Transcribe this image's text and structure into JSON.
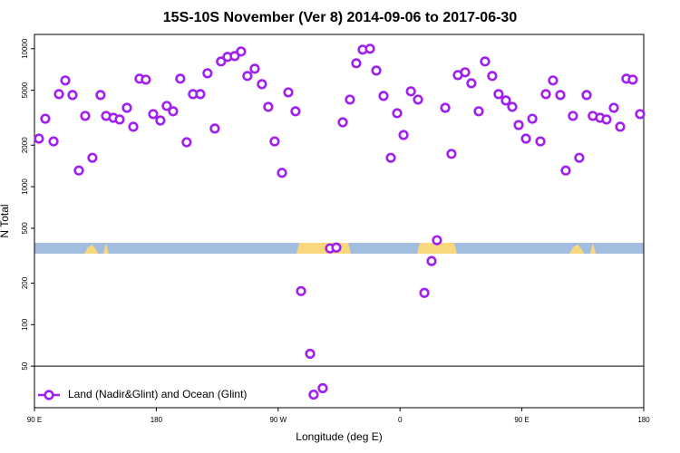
{
  "chart_data": {
    "type": "scatter",
    "title": "15S-10S November (Ver 8)   2014-09-06 to 2017-06-30",
    "x_label": "Longitude (deg E)",
    "y_label": "N Total",
    "log_y": true,
    "xlim": [
      90,
      540
    ],
    "xticks": [
      {
        "value": 90,
        "label": "90 E"
      },
      180,
      {
        "value": 270,
        "label": "90 W"
      },
      {
        "value": 360,
        "label": "0"
      },
      {
        "value": 450,
        "label": "90 E"
      },
      180
    ],
    "ylim": [
      25,
      12700
    ],
    "yticks": [
      50,
      100,
      200,
      500,
      1000,
      2000,
      5000,
      10000
    ],
    "legend": "lower left",
    "series": [
      {
        "name": "Land (Nadir&Glint) and Ocean (Glint)",
        "color": "#a020f0",
        "x": [
          93.3,
          98.0,
          104.1,
          108.1,
          112.8,
          118.1,
          122.8,
          127.5,
          132.8,
          138.8,
          142.9,
          148.3,
          152.9,
          158.3,
          163.0,
          167.6,
          172.3,
          177.7,
          183.0,
          187.7,
          192.4,
          197.7,
          202.4,
          207.1,
          212.5,
          217.8,
          223.2,
          227.8,
          232.6,
          237.9,
          242.6,
          247.3,
          252.7,
          258.0,
          262.7,
          267.4,
          272.8,
          277.5,
          282.8,
          286.9,
          293.6,
          296.2,
          302.9,
          308.3,
          313.0,
          317.7,
          323.0,
          327.7,
          332.4,
          337.8,
          342.5,
          347.8,
          353.2,
          357.9,
          362.6,
          368.0,
          373.3,
          378.0,
          383.3,
          387.3,
          393.4,
          398.0,
          402.7,
          408.1,
          412.7,
          418.1,
          422.8,
          428.1,
          432.8,
          438.2,
          442.9,
          447.6,
          453.0,
          457.7,
          463.7,
          467.7,
          473.0,
          478.4,
          482.4,
          487.7,
          492.4,
          497.8,
          502.4,
          507.8,
          512.5,
          517.9,
          522.6,
          527.2,
          531.9,
          537.3
        ],
        "values": [
          2230,
          3110,
          2130,
          4690,
          5890,
          4620,
          1310,
          3260,
          1620,
          4620,
          3260,
          3160,
          3070,
          3730,
          2720,
          6070,
          5970,
          3360,
          3020,
          3850,
          3520,
          6070,
          2100,
          4690,
          4690,
          6640,
          2640,
          8090,
          8730,
          8850,
          9550,
          6350,
          7160,
          5540,
          3790,
          2130,
          1260,
          4830,
          3520,
          175,
          61.5,
          31.1,
          34.6,
          357,
          362,
          2930,
          4280,
          7850,
          9850,
          10000,
          6950,
          4550,
          1620,
          3410,
          2370,
          4910,
          4280,
          170,
          289,
          409,
          3730,
          1730,
          6440,
          6750,
          5620,
          3520,
          8090,
          6350,
          4690,
          4220,
          3790,
          2800,
          2230,
          3110,
          2130,
          4690,
          5890,
          4620,
          1310,
          3260,
          1620,
          4620,
          3260,
          3160,
          3070,
          3730,
          2720,
          6070,
          5970,
          3360
        ]
      }
    ]
  }
}
